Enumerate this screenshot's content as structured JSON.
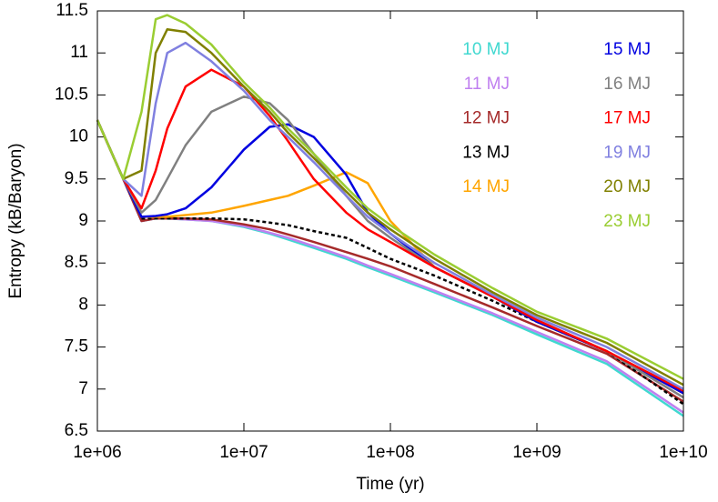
{
  "chart_data": {
    "type": "line",
    "xlabel": "Time (yr)",
    "ylabel": "Entropy (kB/Baryon)",
    "x": [
      1000000,
      1500000,
      2000000,
      2500000,
      3000000,
      4000000,
      6000000,
      10000000,
      15000000,
      20000000,
      30000000,
      50000000,
      70000000,
      100000000,
      200000000,
      500000000,
      1000000000,
      3000000000,
      10000000000
    ],
    "xscale": "log",
    "xlim": [
      1000000,
      10000000000
    ],
    "xticks": [
      {
        "value": 1000000,
        "label": "1e+06"
      },
      {
        "value": 10000000,
        "label": "1e+07"
      },
      {
        "value": 100000000,
        "label": "1e+08"
      },
      {
        "value": 1000000000,
        "label": "1e+09"
      },
      {
        "value": 10000000000,
        "label": "1e+10"
      }
    ],
    "ylim": [
      6.5,
      11.5
    ],
    "yticks": [
      6.5,
      7,
      7.5,
      8,
      8.5,
      9,
      9.5,
      10,
      10.5,
      11,
      11.5
    ],
    "series": [
      {
        "name": "10 MJ",
        "color": "#40d8d0",
        "values": [
          10.2,
          9.5,
          9.0,
          9.03,
          9.03,
          9.02,
          9.0,
          8.93,
          8.85,
          8.78,
          8.68,
          8.55,
          8.45,
          8.35,
          8.15,
          7.88,
          7.65,
          7.3,
          6.68
        ]
      },
      {
        "name": "11 MJ",
        "color": "#c080f0",
        "values": [
          10.2,
          9.5,
          9.0,
          9.03,
          9.03,
          9.02,
          9.0,
          8.94,
          8.86,
          8.8,
          8.7,
          8.57,
          8.47,
          8.37,
          8.17,
          7.9,
          7.68,
          7.33,
          6.72
        ]
      },
      {
        "name": "12 MJ",
        "color": "#a52a2a",
        "values": [
          10.2,
          9.5,
          9.0,
          9.03,
          9.03,
          9.03,
          9.02,
          8.96,
          8.9,
          8.84,
          8.75,
          8.63,
          8.55,
          8.46,
          8.25,
          7.97,
          7.75,
          7.42,
          6.85
        ]
      },
      {
        "name": "13 MJ",
        "color": "#000000",
        "dashed": true,
        "values": [
          null,
          null,
          9.03,
          9.03,
          9.03,
          9.03,
          9.03,
          9.02,
          8.98,
          8.95,
          8.88,
          8.8,
          8.68,
          8.55,
          8.35,
          8.05,
          7.8,
          7.45,
          6.82
        ]
      },
      {
        "name": "14 MJ",
        "color": "#ffa500",
        "values": [
          10.2,
          9.5,
          9.05,
          9.05,
          9.05,
          9.07,
          9.1,
          9.18,
          9.25,
          9.3,
          9.42,
          9.58,
          9.45,
          9.0,
          8.45,
          8.1,
          7.8,
          7.45,
          6.95
        ]
      },
      {
        "name": "15 MJ",
        "color": "#0000e0",
        "values": [
          10.2,
          9.5,
          9.05,
          9.06,
          9.08,
          9.15,
          9.4,
          9.85,
          10.12,
          10.15,
          10.0,
          9.55,
          9.1,
          8.85,
          8.45,
          8.1,
          7.8,
          7.45,
          6.95
        ]
      },
      {
        "name": "16 MJ",
        "color": "#808080",
        "values": [
          10.2,
          9.5,
          9.1,
          9.25,
          9.5,
          9.9,
          10.3,
          10.48,
          10.4,
          10.2,
          9.8,
          9.3,
          9.0,
          8.8,
          8.45,
          8.1,
          7.82,
          7.45,
          6.9
        ]
      },
      {
        "name": "17 MJ",
        "color": "#ff0000",
        "values": [
          10.2,
          9.5,
          9.15,
          9.6,
          10.1,
          10.6,
          10.8,
          10.6,
          10.25,
          9.95,
          9.5,
          9.1,
          8.9,
          8.75,
          8.45,
          8.1,
          7.82,
          7.45,
          6.98
        ]
      },
      {
        "name": "19 MJ",
        "color": "#8080e0",
        "values": [
          10.2,
          9.5,
          9.3,
          10.4,
          11.0,
          11.12,
          10.9,
          10.55,
          10.2,
          10.0,
          9.7,
          9.3,
          9.05,
          8.85,
          8.5,
          8.12,
          7.85,
          7.5,
          7.0
        ]
      },
      {
        "name": "20 MJ",
        "color": "#808000",
        "values": [
          10.2,
          9.5,
          9.6,
          11.0,
          11.28,
          11.25,
          11.0,
          10.6,
          10.3,
          10.05,
          9.75,
          9.35,
          9.1,
          8.9,
          8.55,
          8.15,
          7.88,
          7.55,
          7.05
        ]
      },
      {
        "name": "23 MJ",
        "color": "#9acd32",
        "values": [
          10.2,
          9.5,
          10.3,
          11.4,
          11.45,
          11.35,
          11.1,
          10.65,
          10.35,
          10.1,
          9.8,
          9.4,
          9.15,
          8.95,
          8.6,
          8.2,
          7.92,
          7.6,
          7.12
        ]
      }
    ]
  }
}
